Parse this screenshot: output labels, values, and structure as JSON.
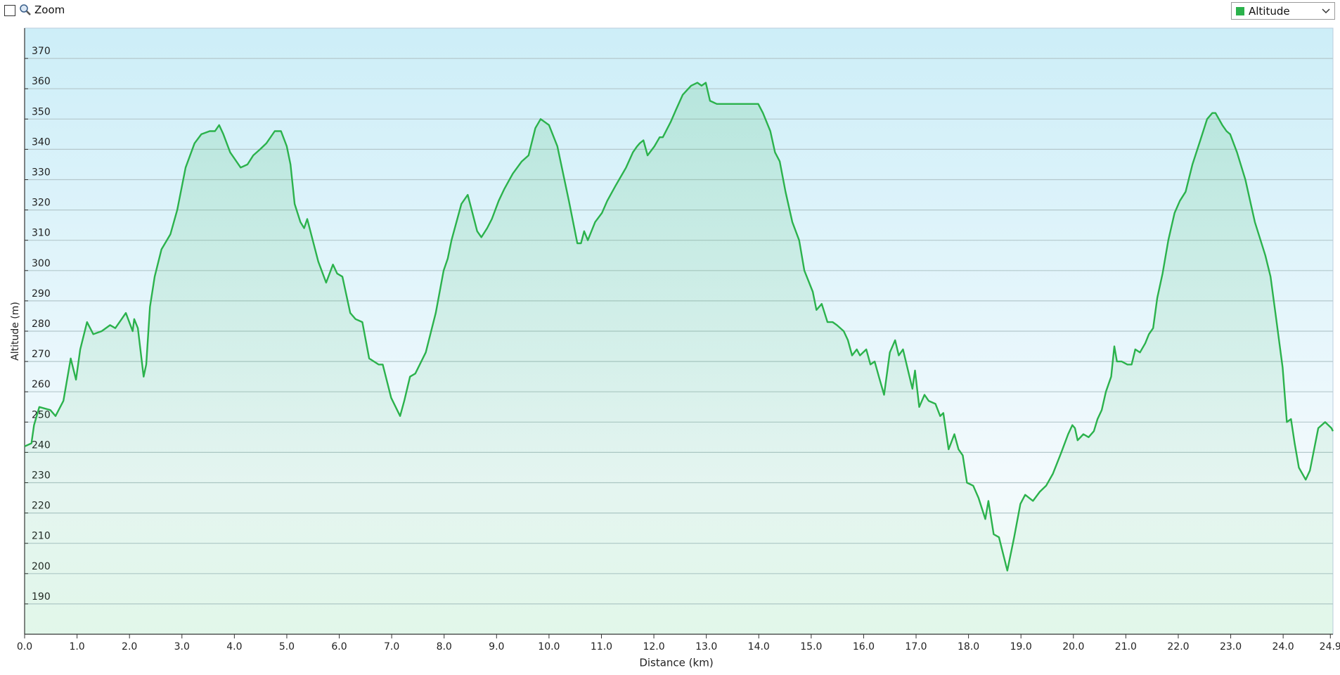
{
  "toolbar": {
    "zoom_label": "Zoom"
  },
  "chart_data": {
    "type": "area",
    "x_label": "Distance  (km)",
    "y_label": "Altitude (m)",
    "xlim": [
      0,
      24.95
    ],
    "ylim": [
      180,
      380
    ],
    "xticks": [
      {
        "value": 0,
        "label": "0.0"
      },
      {
        "value": 1,
        "label": "1.0"
      },
      {
        "value": 2,
        "label": "2.0"
      },
      {
        "value": 3,
        "label": "3.0"
      },
      {
        "value": 4,
        "label": "4.0"
      },
      {
        "value": 5,
        "label": "5.0"
      },
      {
        "value": 6,
        "label": "6.0"
      },
      {
        "value": 7,
        "label": "7.0"
      },
      {
        "value": 8,
        "label": "8.0"
      },
      {
        "value": 9,
        "label": "9.0"
      },
      {
        "value": 10,
        "label": "10.0"
      },
      {
        "value": 11,
        "label": "11.0"
      },
      {
        "value": 12,
        "label": "12.0"
      },
      {
        "value": 13,
        "label": "13.0"
      },
      {
        "value": 14,
        "label": "14.0"
      },
      {
        "value": 15,
        "label": "15.0"
      },
      {
        "value": 16,
        "label": "16.0"
      },
      {
        "value": 17,
        "label": "17.0"
      },
      {
        "value": 18,
        "label": "18.0"
      },
      {
        "value": 19,
        "label": "19.0"
      },
      {
        "value": 20,
        "label": "20.0"
      },
      {
        "value": 21,
        "label": "21.0"
      },
      {
        "value": 22,
        "label": "22.0"
      },
      {
        "value": 23,
        "label": "23.0"
      },
      {
        "value": 24,
        "label": "24.0"
      },
      24.9
    ],
    "yticks": [
      190,
      200,
      210,
      220,
      230,
      240,
      250,
      260,
      270,
      280,
      290,
      300,
      310,
      320,
      330,
      340,
      350,
      360,
      370
    ],
    "grid": true,
    "x": [
      0.0,
      0.13,
      0.18,
      0.28,
      0.49,
      0.59,
      0.74,
      0.88,
      0.98,
      1.06,
      1.19,
      1.31,
      1.47,
      1.63,
      1.73,
      1.85,
      1.93,
      2.06,
      2.09,
      2.16,
      2.27,
      2.32,
      2.39,
      2.48,
      2.61,
      2.78,
      2.91,
      3.07,
      3.24,
      3.37,
      3.53,
      3.63,
      3.71,
      3.79,
      3.92,
      4.12,
      4.25,
      4.36,
      4.49,
      4.61,
      4.77,
      4.89,
      5.0,
      5.07,
      5.15,
      5.26,
      5.33,
      5.39,
      5.6,
      5.75,
      5.88,
      5.96,
      6.06,
      6.21,
      6.31,
      6.44,
      6.57,
      6.75,
      6.83,
      6.99,
      7.16,
      7.24,
      7.35,
      7.45,
      7.65,
      7.84,
      7.99,
      8.07,
      8.14,
      8.33,
      8.45,
      8.51,
      8.63,
      8.71,
      8.82,
      8.91,
      9.04,
      9.15,
      9.31,
      9.48,
      9.61,
      9.74,
      9.84,
      10.0,
      10.16,
      10.38,
      10.54,
      10.61,
      10.67,
      10.74,
      10.88,
      11.01,
      11.11,
      11.27,
      11.47,
      11.6,
      11.68,
      11.73,
      11.8,
      11.88,
      12.01,
      12.11,
      12.17,
      12.32,
      12.42,
      12.55,
      12.71,
      12.83,
      12.91,
      12.99,
      13.07,
      13.2,
      13.56,
      13.81,
      13.99,
      14.08,
      14.22,
      14.31,
      14.4,
      14.51,
      14.64,
      14.77,
      14.87,
      15.03,
      15.1,
      15.2,
      15.31,
      15.41,
      15.49,
      15.62,
      15.7,
      15.78,
      15.87,
      15.93,
      16.05,
      16.13,
      16.21,
      16.29,
      16.39,
      16.5,
      16.6,
      16.67,
      16.75,
      16.93,
      16.98,
      17.06,
      17.16,
      17.24,
      17.37,
      17.46,
      17.52,
      17.62,
      17.73,
      17.81,
      17.89,
      17.97,
      18.09,
      18.19,
      18.32,
      18.38,
      18.48,
      18.58,
      18.74,
      18.87,
      18.99,
      19.08,
      19.23,
      19.36,
      19.48,
      19.61,
      19.77,
      19.9,
      19.98,
      20.03,
      20.08,
      20.19,
      20.29,
      20.39,
      20.46,
      20.54,
      20.62,
      20.72,
      20.78,
      20.83,
      20.92,
      21.03,
      21.11,
      21.18,
      21.27,
      21.37,
      21.44,
      21.52,
      21.6,
      21.7,
      21.81,
      21.93,
      22.03,
      22.14,
      22.27,
      22.42,
      22.55,
      22.65,
      22.71,
      22.84,
      22.92,
      22.99,
      23.12,
      23.28,
      23.46,
      23.66,
      23.76,
      23.86,
      23.99,
      24.07,
      24.15,
      24.22,
      24.3,
      24.43,
      24.51,
      24.67,
      24.8,
      24.92,
      24.95
    ],
    "series": [
      {
        "name": "Altitude",
        "color": "#2bb24c",
        "values": [
          242,
          243,
          249,
          255,
          254,
          252,
          257,
          271,
          264,
          274,
          283,
          279,
          280,
          282,
          281,
          284,
          286,
          280,
          284,
          281,
          265,
          269,
          288,
          298,
          307,
          312,
          320,
          334,
          342,
          345,
          346,
          346,
          348,
          345,
          339,
          334,
          335,
          338,
          340,
          342,
          346,
          346,
          341,
          335,
          322,
          316,
          314,
          317,
          303,
          296,
          302,
          299,
          298,
          286,
          284,
          283,
          271,
          269,
          269,
          258,
          252,
          257,
          265,
          266,
          273,
          286,
          300,
          304,
          310,
          322,
          325,
          321,
          313,
          311,
          314,
          317,
          323,
          327,
          332,
          336,
          338,
          347,
          350,
          348,
          341,
          323,
          309,
          309,
          313,
          310,
          316,
          319,
          323,
          328,
          334,
          339,
          341,
          342,
          343,
          338,
          341,
          344,
          344,
          349,
          353,
          358,
          361,
          362,
          361,
          362,
          356,
          355,
          355,
          355,
          355,
          352,
          346,
          339,
          336,
          326,
          316,
          310,
          300,
          293,
          287,
          289,
          283,
          283,
          282,
          280,
          277,
          272,
          274,
          272,
          274,
          269,
          270,
          265,
          259,
          273,
          277,
          272,
          274,
          261,
          267,
          255,
          259,
          257,
          256,
          252,
          253,
          241,
          246,
          241,
          239,
          230,
          229,
          225,
          218,
          224,
          213,
          212,
          201,
          212,
          223,
          226,
          224,
          227,
          229,
          233,
          240,
          246,
          249,
          248,
          244,
          246,
          245,
          247,
          251,
          254,
          260,
          265,
          275,
          270,
          270,
          269,
          269,
          274,
          273,
          276,
          279,
          281,
          291,
          299,
          310,
          319,
          323,
          326,
          335,
          343,
          350,
          352,
          352,
          348,
          346,
          345,
          339,
          330,
          316,
          305,
          298,
          285,
          268,
          250,
          251,
          243,
          235,
          231,
          234,
          248,
          250,
          248,
          247
        ]
      }
    ]
  }
}
